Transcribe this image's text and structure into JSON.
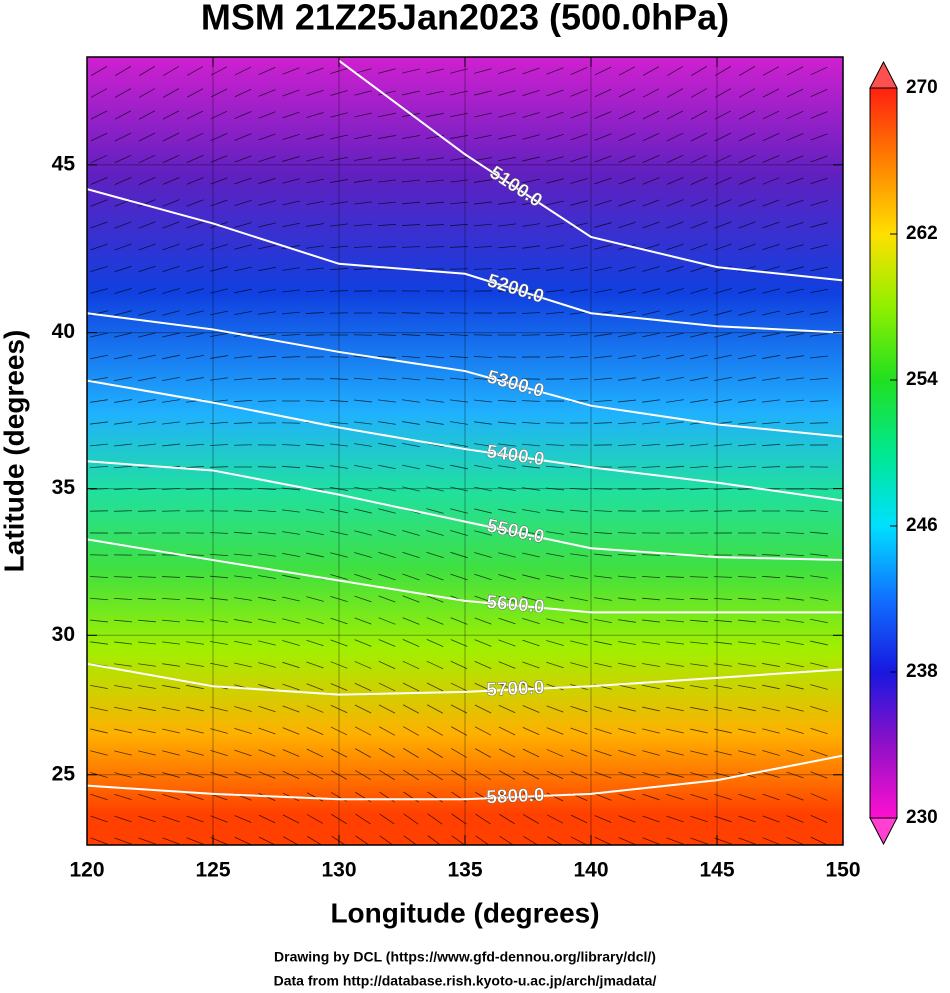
{
  "chart_data": {
    "type": "contour",
    "title": "MSM 21Z25Jan2023 (500.0hPa)",
    "xlabel": "Longitude (degrees)",
    "ylabel": "Latitude  (degrees)",
    "projection": "mercator",
    "xlim": [
      120,
      150
    ],
    "ylim": [
      22.4,
      48
    ],
    "xticks": [
      120,
      125,
      130,
      135,
      140,
      145,
      150
    ],
    "yticks": [
      25,
      30,
      35,
      40,
      45
    ],
    "grid": true,
    "contour_color": "#ffffff",
    "contour_x": [
      120,
      125,
      130,
      135,
      140,
      145,
      150
    ],
    "contours": [
      {
        "value": 5100,
        "label": "5100.0",
        "lats": [
          null,
          null,
          47.9,
          45.3,
          42.9,
          42.0,
          41.6
        ]
      },
      {
        "value": 5200,
        "label": "5200.0",
        "lats": [
          44.3,
          43.3,
          42.1,
          41.8,
          40.6,
          40.2,
          40.0
        ]
      },
      {
        "value": 5300,
        "label": "5300.0",
        "lats": [
          40.6,
          40.1,
          39.4,
          38.8,
          37.7,
          37.1,
          36.7
        ]
      },
      {
        "value": 5400,
        "label": "5400.0",
        "lats": [
          38.5,
          37.8,
          37.0,
          36.3,
          35.7,
          35.2,
          34.6
        ]
      },
      {
        "value": 5500,
        "label": "5500.0",
        "lats": [
          35.9,
          35.6,
          34.8,
          33.9,
          33.0,
          32.7,
          32.6
        ]
      },
      {
        "value": 5600,
        "label": "5600.0",
        "lats": [
          33.3,
          32.6,
          31.9,
          31.2,
          30.8,
          30.8,
          30.8
        ]
      },
      {
        "value": 5700,
        "label": "5700.0",
        "lats": [
          29.0,
          28.2,
          27.9,
          28.0,
          28.2,
          28.5,
          28.8
        ]
      },
      {
        "value": 5800,
        "label": "5800.0",
        "lats": [
          24.6,
          24.3,
          24.1,
          24.1,
          24.3,
          24.8,
          25.7
        ]
      }
    ],
    "colorbar": {
      "lim": [
        230,
        270
      ],
      "ticks": [
        230,
        238,
        246,
        254,
        262,
        270
      ],
      "colors": [
        "#ff10d0",
        "#9010c8",
        "#1818e0",
        "#1070ff",
        "#00e0ff",
        "#00e890",
        "#20e020",
        "#90f000",
        "#ffe000",
        "#ff8000",
        "#ff2010"
      ]
    }
  },
  "credits": [
    "Drawing by DCL (https://www.gfd-dennou.org/library/dcl/)",
    "Data from http://database.rish.kyoto-u.ac.jp/arch/jmadata/"
  ]
}
